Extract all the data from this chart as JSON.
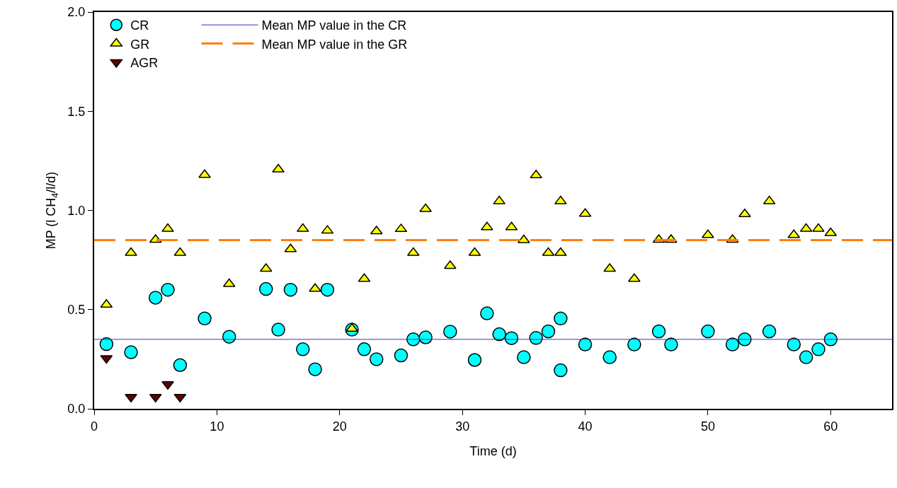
{
  "chart_data": {
    "type": "scatter",
    "xlabel": "Time (d)",
    "ylabel": "MP (l CH$_{4}$/l/d)",
    "xlim": [
      0,
      65
    ],
    "xticks": [
      0,
      10,
      20,
      30,
      40,
      50,
      60
    ],
    "ylim": [
      0,
      2
    ],
    "yticks": [
      {
        "value": 0,
        "label": "0.0"
      },
      {
        "value": 0.5,
        "label": "0.5"
      },
      {
        "value": 1,
        "label": "1.0"
      },
      {
        "value": 1.5,
        "label": "1.5"
      },
      {
        "value": 2,
        "label": "2.0"
      }
    ],
    "legend": "top left",
    "series": [
      {
        "name": "CR",
        "color": "#00ffff",
        "marker": "circle",
        "x": [
          1,
          3,
          5,
          6,
          7,
          9,
          11,
          14,
          15,
          16,
          17,
          18,
          19,
          21,
          22,
          23,
          25,
          26,
          27,
          29,
          31,
          32,
          33,
          34,
          35,
          36,
          37,
          38,
          38,
          40,
          42,
          44,
          46,
          47,
          50,
          52,
          53,
          55,
          57,
          58,
          59,
          60
        ],
        "values": [
          0.326,
          0.285,
          0.56,
          0.6,
          0.22,
          0.455,
          0.363,
          0.604,
          0.399,
          0.6,
          0.3,
          0.199,
          0.6,
          0.399,
          0.3,
          0.25,
          0.269,
          0.35,
          0.36,
          0.389,
          0.246,
          0.481,
          0.376,
          0.356,
          0.26,
          0.357,
          0.39,
          0.455,
          0.194,
          0.324,
          0.26,
          0.324,
          0.39,
          0.324,
          0.39,
          0.324,
          0.35,
          0.39,
          0.324,
          0.26,
          0.3,
          0.35
        ]
      },
      {
        "name": "GR",
        "color": "#ffff00",
        "marker": "triangle",
        "x": [
          1,
          3,
          5,
          6,
          7,
          9,
          11,
          14,
          15,
          16,
          17,
          18,
          19,
          21,
          22,
          23,
          25,
          26,
          27,
          29,
          31,
          32,
          33,
          34,
          35,
          36,
          37,
          38,
          38,
          40,
          42,
          44,
          46,
          47,
          50,
          52,
          53,
          55,
          57,
          58,
          59,
          60
        ],
        "values": [
          0.525,
          0.786,
          0.852,
          0.907,
          0.786,
          1.179,
          0.629,
          0.706,
          1.207,
          0.805,
          0.907,
          0.605,
          0.898,
          0.404,
          0.655,
          0.895,
          0.906,
          0.786,
          1.007,
          0.72,
          0.786,
          0.915,
          1.046,
          0.915,
          0.85,
          1.177,
          0.786,
          0.786,
          1.046,
          0.983,
          0.706,
          0.655,
          0.852,
          0.852,
          0.876,
          0.852,
          0.981,
          1.046,
          0.876,
          0.907,
          0.907,
          0.886
        ]
      },
      {
        "name": "AGR",
        "color": "#660000",
        "marker": "triangle-down",
        "x": [
          1,
          3,
          5,
          6,
          7
        ],
        "values": [
          0.255,
          0.06,
          0.06,
          0.124,
          0.06
        ]
      }
    ],
    "ref_lines": [
      {
        "axis": "y",
        "value": 0.35,
        "label": "Mean MP value in the CR",
        "color": "#3333cc",
        "line_style": "solid"
      },
      {
        "axis": "y",
        "value": 0.85,
        "label": "Mean MP value in the GR",
        "color": "#ff7f0e",
        "line_style": "dashed"
      }
    ]
  }
}
